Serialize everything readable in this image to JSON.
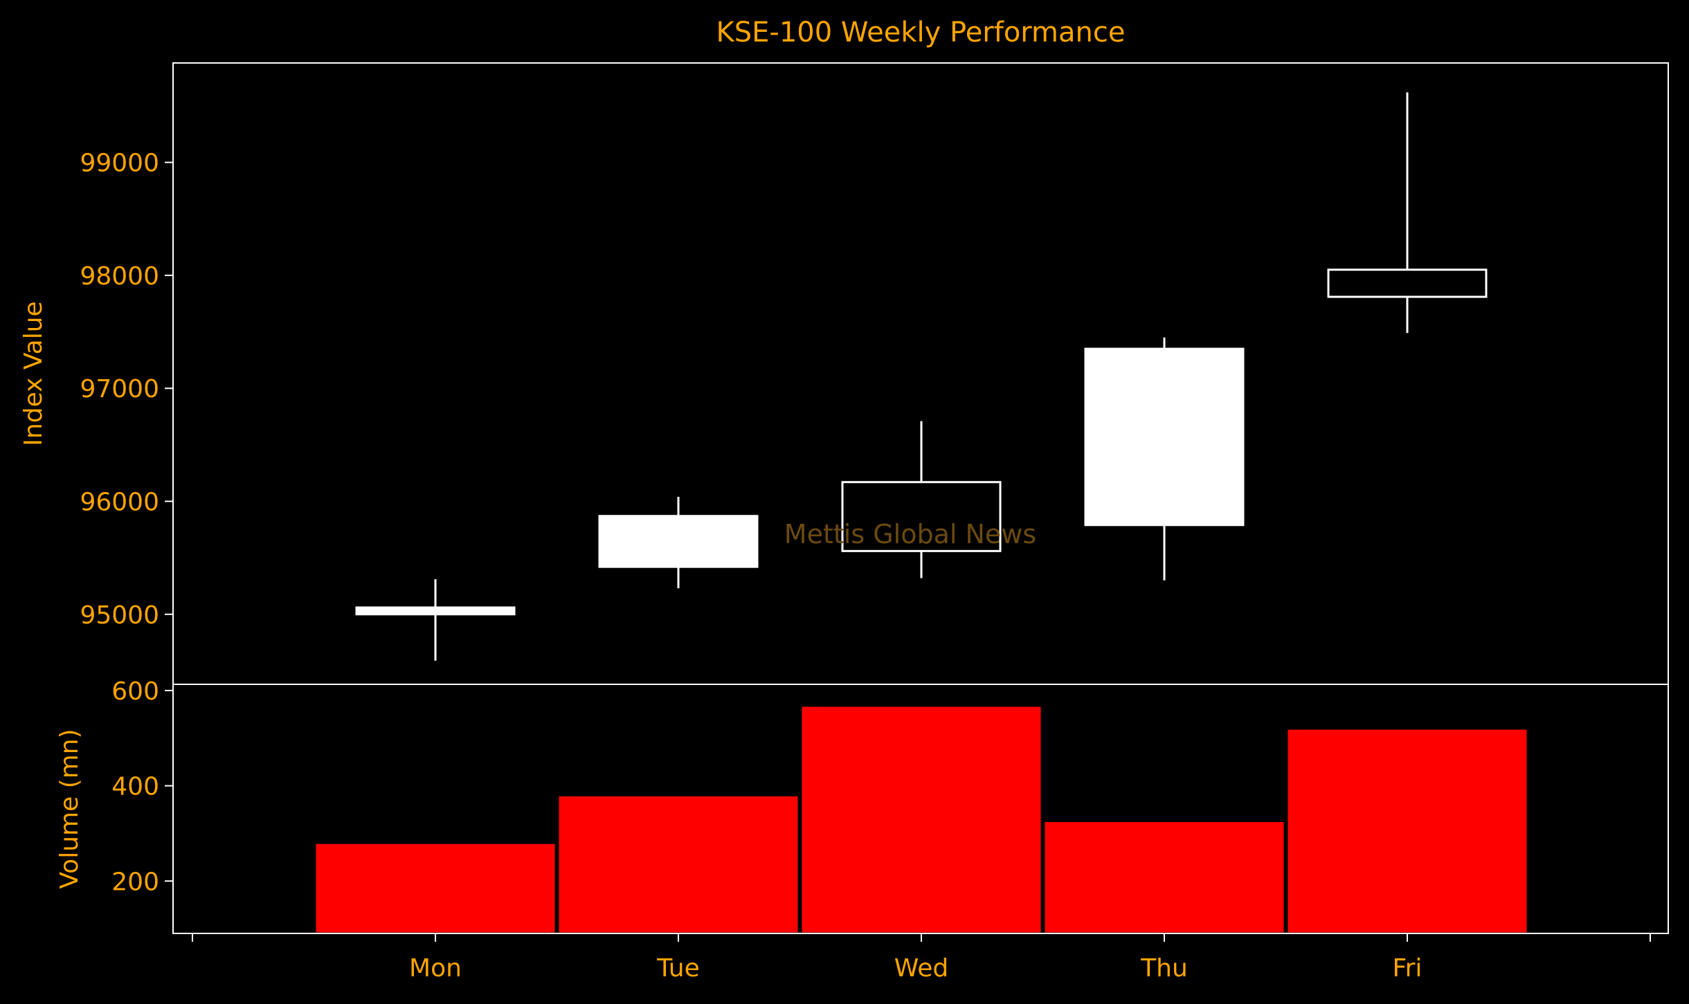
{
  "chart_data": {
    "type": "candlestick",
    "title": "KSE-100 Weekly Performance",
    "watermark": "Mettis Global News",
    "categories": [
      "Mon",
      "Tue",
      "Wed",
      "Thu",
      "Fri"
    ],
    "price": {
      "ylabel": "Index Value",
      "ylim": [
        94380,
        99880
      ],
      "yticks": [
        95000,
        96000,
        97000,
        98000,
        99000
      ],
      "ohlc": [
        {
          "open": 95000,
          "high": 95310,
          "low": 94590,
          "close": 95060
        },
        {
          "open": 95420,
          "high": 96040,
          "low": 95230,
          "close": 95870
        },
        {
          "open": 96170,
          "high": 96710,
          "low": 95320,
          "close": 95560
        },
        {
          "open": 95790,
          "high": 97450,
          "low": 95300,
          "close": 97350
        },
        {
          "open": 98050,
          "high": 99620,
          "low": 97490,
          "close": 97810
        }
      ]
    },
    "volume": {
      "ylabel": "Volume (mn)",
      "ylim": [
        90,
        613
      ],
      "yticks": [
        200,
        400,
        600
      ],
      "values": [
        280,
        380,
        568,
        326,
        520
      ]
    },
    "colors": {
      "background": "#000000",
      "text": "#ffa500",
      "axes": "#ffffff",
      "candle": "#ffffff",
      "volume_bar": "#ff0000",
      "watermark": "#6b4a10"
    }
  }
}
